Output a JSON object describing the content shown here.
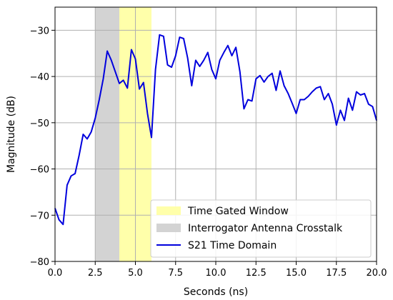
{
  "chart_data": {
    "type": "line",
    "xlabel": "Seconds (ns)",
    "ylabel": "Magnitude (dB)",
    "xlim": [
      0.0,
      20.0
    ],
    "ylim": [
      -80,
      -25
    ],
    "xticks": [
      0.0,
      2.5,
      5.0,
      7.5,
      10.0,
      12.5,
      15.0,
      17.5,
      20.0
    ],
    "xtick_labels": [
      "0.0",
      "2.5",
      "5.0",
      "7.5",
      "10.0",
      "12.5",
      "15.0",
      "17.5",
      "20.0"
    ],
    "yticks": [
      -80,
      -70,
      -60,
      -50,
      -40,
      -30
    ],
    "ytick_labels": [
      "−80",
      "−70",
      "−60",
      "−50",
      "−40",
      "−30"
    ],
    "grid": true,
    "legend_position": "bottom-right",
    "bands": [
      {
        "name": "Time Gated Window",
        "x0": 4.0,
        "x1": 6.0,
        "color": "#ffffaa"
      },
      {
        "name": "Interrogator Antenna Crosstalk",
        "x0": 2.5,
        "x1": 4.0,
        "color": "#d3d3d3"
      }
    ],
    "series": [
      {
        "name": "S21 Time Domain",
        "color": "#0000dd",
        "x": [
          0.0,
          0.25,
          0.5,
          0.75,
          1.0,
          1.25,
          1.5,
          1.75,
          2.0,
          2.25,
          2.5,
          2.75,
          3.0,
          3.25,
          3.5,
          3.75,
          4.0,
          4.25,
          4.5,
          4.75,
          5.0,
          5.25,
          5.5,
          5.75,
          6.0,
          6.25,
          6.5,
          6.75,
          7.0,
          7.25,
          7.5,
          7.75,
          8.0,
          8.25,
          8.5,
          8.75,
          9.0,
          9.25,
          9.5,
          9.75,
          10.0,
          10.25,
          10.5,
          10.75,
          11.0,
          11.25,
          11.5,
          11.75,
          12.0,
          12.25,
          12.5,
          12.75,
          13.0,
          13.25,
          13.5,
          13.75,
          14.0,
          14.25,
          14.5,
          14.75,
          15.0,
          15.25,
          15.5,
          15.75,
          16.0,
          16.25,
          16.5,
          16.75,
          17.0,
          17.25,
          17.5,
          17.75,
          18.0,
          18.25,
          18.5,
          18.75,
          19.0,
          19.25,
          19.5,
          19.75,
          20.0
        ],
        "y": [
          -68.5,
          -71.0,
          -72.0,
          -63.5,
          -61.5,
          -61.0,
          -57.0,
          -52.5,
          -53.5,
          -52.0,
          -49.0,
          -45.0,
          -40.5,
          -34.5,
          -36.5,
          -39.0,
          -41.5,
          -40.8,
          -42.5,
          -34.2,
          -36.2,
          -42.7,
          -41.3,
          -48.0,
          -53.2,
          -38.5,
          -31.0,
          -31.3,
          -37.5,
          -38.0,
          -35.5,
          -31.5,
          -31.8,
          -36.0,
          -42.0,
          -36.5,
          -37.8,
          -36.5,
          -34.8,
          -38.5,
          -40.5,
          -36.5,
          -34.8,
          -33.3,
          -35.5,
          -33.7,
          -39.0,
          -47.0,
          -45.0,
          -45.3,
          -40.5,
          -39.8,
          -41.2,
          -40.0,
          -39.3,
          -43.0,
          -38.8,
          -42.0,
          -43.7,
          -45.8,
          -48.0,
          -45.0,
          -45.0,
          -44.3,
          -43.3,
          -42.5,
          -42.2,
          -45.0,
          -43.7,
          -46.0,
          -50.5,
          -47.3,
          -49.5,
          -44.7,
          -47.3,
          -43.3,
          -44.0,
          -43.7,
          -46.0,
          -46.5,
          -49.5
        ]
      }
    ]
  }
}
